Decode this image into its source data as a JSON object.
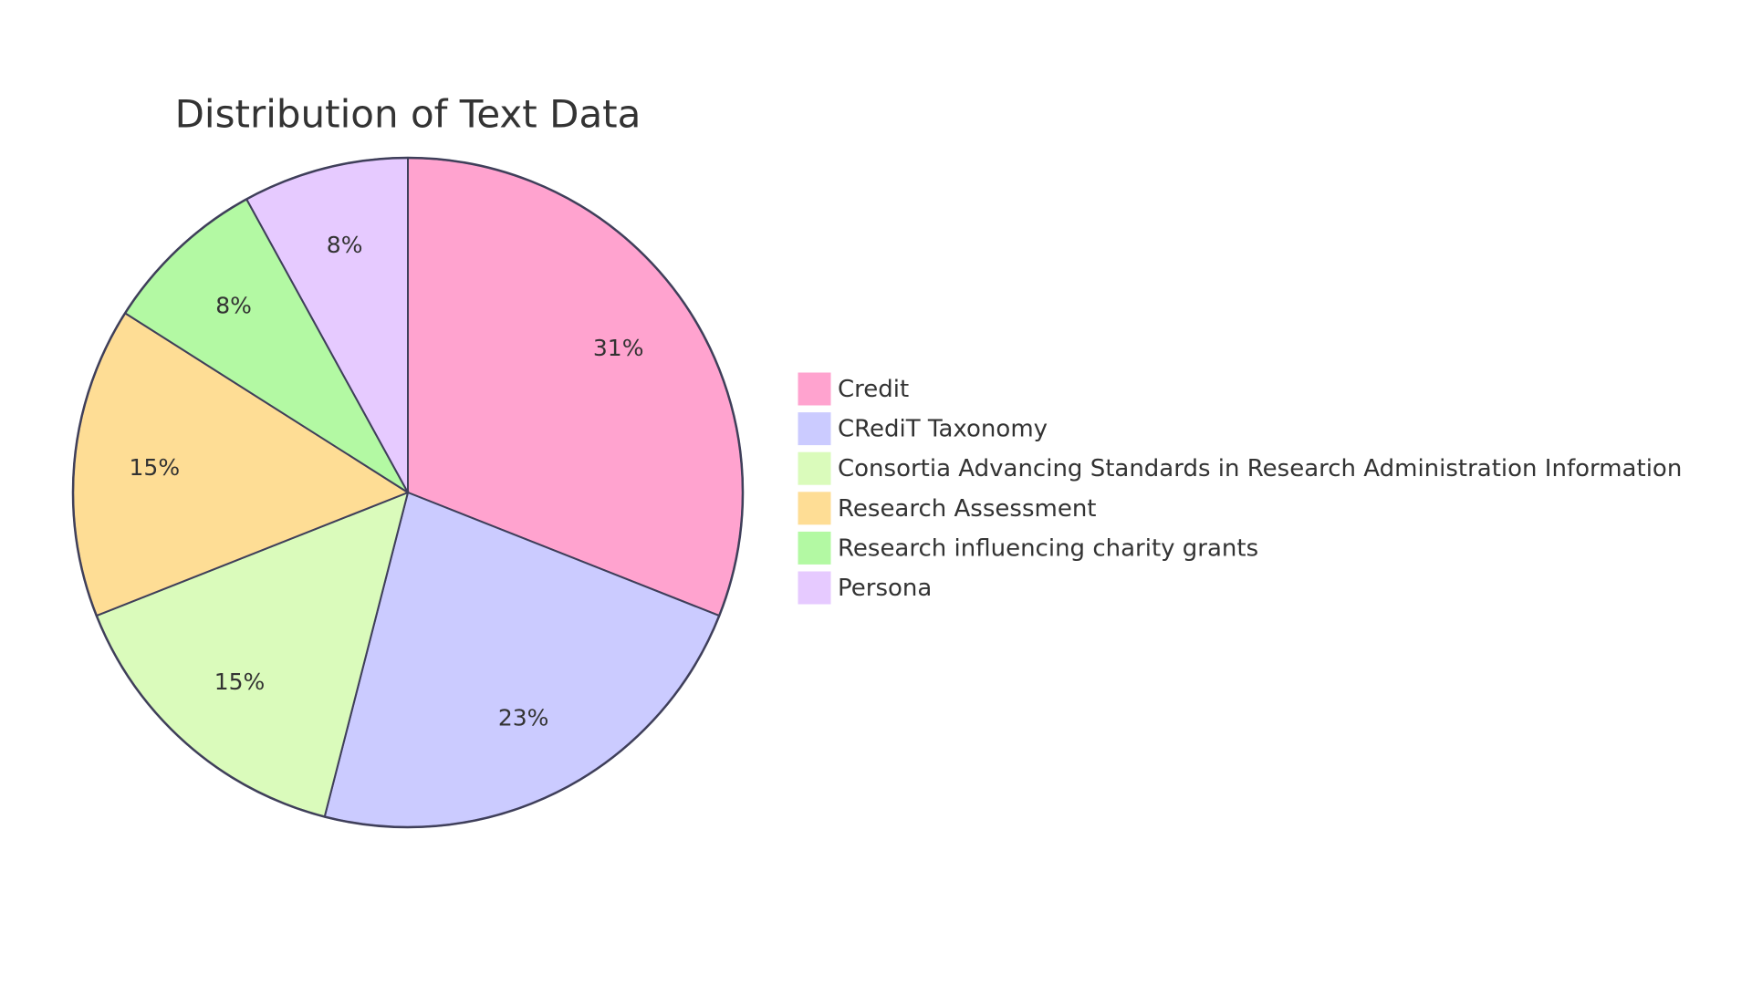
{
  "chart_data": {
    "type": "pie",
    "title": "Distribution of Text Data",
    "categories": [
      "Credit",
      "CRediT Taxonomy",
      "Consortia Advancing Standards in Research Administration Information",
      "Research Assessment",
      "Research influencing charity grants",
      "Persona"
    ],
    "values": [
      31,
      23,
      15,
      15,
      8,
      8
    ],
    "value_labels": [
      "31%",
      "23%",
      "15%",
      "15%",
      "8%",
      "8%"
    ],
    "colors": [
      "#ffa3cf",
      "#cbcbff",
      "#dafbbb",
      "#fedd95",
      "#b3f9a3",
      "#e6caff"
    ],
    "legend": "right"
  }
}
